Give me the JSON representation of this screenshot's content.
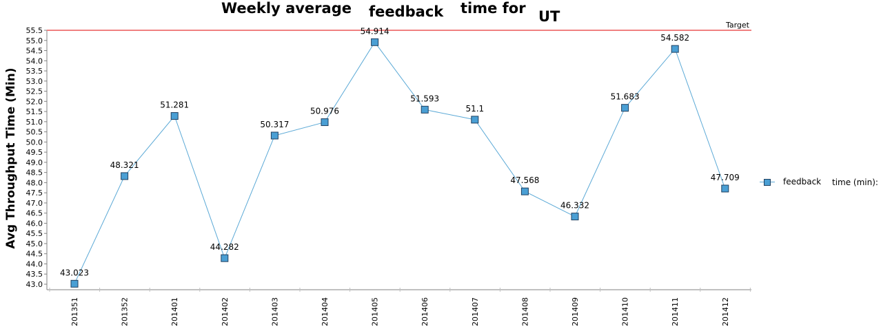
{
  "chart_data": {
    "type": "line",
    "title_parts": [
      "Weekly average",
      "feedback",
      "time for",
      "UT"
    ],
    "ylabel": "Avg Throughput Time (Min)",
    "xlabel": "",
    "categories": [
      "201351",
      "201352",
      "201401",
      "201402",
      "201403",
      "201404",
      "201405",
      "201406",
      "201407",
      "201408",
      "201409",
      "201410",
      "201411",
      "201412"
    ],
    "series": [
      {
        "name": "feedback",
        "values": [
          43.023,
          48.321,
          51.281,
          44.282,
          50.317,
          50.976,
          54.914,
          51.593,
          51.1,
          47.568,
          46.332,
          51.683,
          54.582,
          47.709
        ],
        "labels": [
          "43.023",
          "48.321",
          "51.281",
          "44.282",
          "50.317",
          "50.976",
          "54.914",
          "51.593",
          "51.1",
          "47.568",
          "46.332",
          "51.683",
          "54.582",
          "47.709"
        ],
        "color": "#5ba9d6",
        "marker_color": "#4a9fd4",
        "marker_edge": "#1f3f5f"
      }
    ],
    "target": {
      "label": "Target",
      "value": 55.5,
      "color": "#f08080"
    },
    "ylim": [
      43.0,
      55.5
    ],
    "yticks": [
      "43.0",
      "43.5",
      "44.0",
      "44.5",
      "45.0",
      "45.5",
      "46.0",
      "46.5",
      "47.0",
      "47.5",
      "48.0",
      "48.5",
      "49.0",
      "49.5",
      "50.0",
      "50.5",
      "51.0",
      "51.5",
      "52.0",
      "52.5",
      "53.0",
      "53.5",
      "54.0",
      "54.5",
      "55.0",
      "55.5"
    ],
    "grid": false,
    "legend": {
      "placement": "right",
      "label": "feedback",
      "extra_text": "time (min):"
    }
  }
}
